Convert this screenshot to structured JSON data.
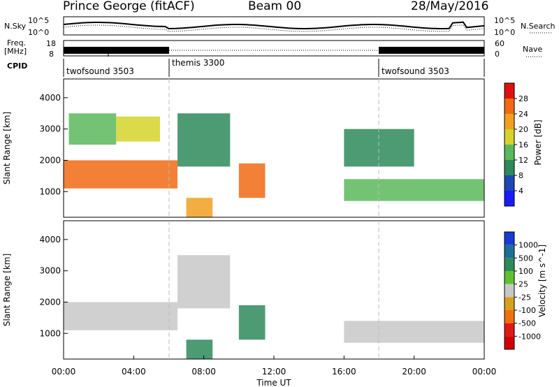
{
  "header": {
    "station": "Prince George (fitACF)",
    "beam": "Beam 00",
    "date": "28/May/2016"
  },
  "noise_panel": {
    "left_label": "N.Sky",
    "left_ticks": [
      "10^5",
      "10^0"
    ],
    "right_ticks": [
      "10^5",
      "10^0"
    ],
    "right_label": "N.Search",
    "right_legend_style": "dotted"
  },
  "freq_panel": {
    "left_label_line1": "Freq.",
    "left_label_line2": "[MHz]",
    "left_ticks": [
      "18",
      "8"
    ],
    "right_ticks": [
      "60",
      "0"
    ],
    "right_label": "Nave",
    "right_legend_style": "dotted"
  },
  "cpid": {
    "label": "CPID",
    "modes": [
      {
        "name": "twofsound 3503",
        "start_hour": 0,
        "end_hour": 6
      },
      {
        "name": "themis 3300",
        "start_hour": 6,
        "end_hour": 18
      },
      {
        "name": "twofsound 3503",
        "start_hour": 18,
        "end_hour": 24
      }
    ]
  },
  "x_axis": {
    "label": "Time UT",
    "range_hours": [
      0,
      24
    ],
    "ticks": [
      "00:00",
      "04:00",
      "08:00",
      "12:00",
      "16:00",
      "20:00",
      "00:00"
    ]
  },
  "chart_data": [
    {
      "type": "heatmap",
      "parameter": "Power",
      "ylabel": "Slant Range [km]",
      "ylim": [
        180,
        4600
      ],
      "yticks": [
        "1000",
        "2000",
        "3000",
        "4000"
      ],
      "colorbar": {
        "label": "Power [dB]",
        "ticks": [
          "4",
          "8",
          "12",
          "16",
          "20",
          "24",
          "28"
        ],
        "colors": [
          "#1a1aff",
          "#1e46b4",
          "#2e8a5a",
          "#5cb85c",
          "#d4d42a",
          "#f0a020",
          "#f06a14",
          "#e01010"
        ]
      },
      "echo_regions": [
        {
          "t0": 0.0,
          "t1": 6.5,
          "r0": 1100,
          "r1": 2000,
          "level": 24
        },
        {
          "t0": 0.3,
          "t1": 3.0,
          "r0": 2500,
          "r1": 3500,
          "level": 14
        },
        {
          "t0": 3.0,
          "t1": 5.5,
          "r0": 2600,
          "r1": 3400,
          "level": 18
        },
        {
          "t0": 6.5,
          "t1": 9.5,
          "r0": 1800,
          "r1": 3500,
          "level": 10
        },
        {
          "t0": 7.0,
          "t1": 8.5,
          "r0": 180,
          "r1": 800,
          "level": 22
        },
        {
          "t0": 10.0,
          "t1": 11.5,
          "r0": 800,
          "r1": 1900,
          "level": 26
        },
        {
          "t0": 16.0,
          "t1": 24.0,
          "r0": 700,
          "r1": 1400,
          "level": 12
        },
        {
          "t0": 16.0,
          "t1": 20.0,
          "r0": 1800,
          "r1": 3000,
          "level": 8
        }
      ]
    },
    {
      "type": "heatmap",
      "parameter": "Velocity",
      "ylabel": "Slant Range [km]",
      "ylim": [
        180,
        4600
      ],
      "yticks": [
        "1000",
        "2000",
        "3000",
        "4000"
      ],
      "colorbar": {
        "label": "Velocity [m s^-1]",
        "ticks": [
          "1000",
          "500",
          "100",
          "25",
          "-25",
          "-100",
          "-500",
          "-1000"
        ],
        "colors": [
          "#1a3ad4",
          "#1e6e9a",
          "#2e8a5a",
          "#60c030",
          "#c8c8c8",
          "#d8a020",
          "#f07010",
          "#e01818",
          "#d00000"
        ]
      },
      "echo_regions": [
        {
          "t0": 0.0,
          "t1": 6.5,
          "r0": 1100,
          "r1": 2000,
          "level": 0
        },
        {
          "t0": 6.5,
          "t1": 9.5,
          "r0": 1800,
          "r1": 3500,
          "level": 0
        },
        {
          "t0": 10.0,
          "t1": 11.5,
          "r0": 800,
          "r1": 1900,
          "level": 300
        },
        {
          "t0": 7.0,
          "t1": 8.5,
          "r0": 180,
          "r1": 800,
          "level": 200
        },
        {
          "t0": 16.0,
          "t1": 24.0,
          "r0": 700,
          "r1": 1400,
          "level": 0
        }
      ]
    }
  ]
}
